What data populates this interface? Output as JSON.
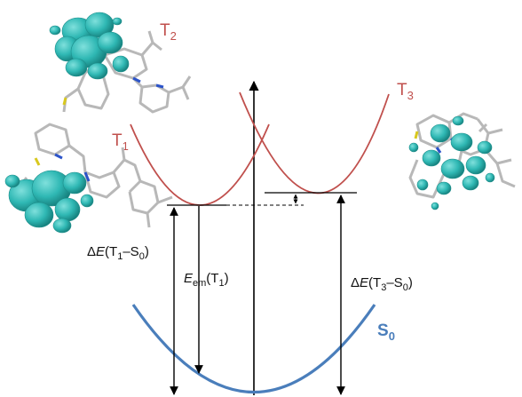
{
  "colors": {
    "excited_curve": "#c0504d",
    "ground_curve": "#4a7ebb",
    "orbital": "#2fb8b4",
    "orbital_dark": "#1e8f8c",
    "bond": "#b8b8b8",
    "nitrogen": "#2b53c9",
    "sulfur": "#d8c81e",
    "arrow": "#000000"
  },
  "states": {
    "T2": {
      "base": "T",
      "sub": "2"
    },
    "T3": {
      "base": "T",
      "sub": "3"
    },
    "T1": {
      "base": "T",
      "sub": "1"
    },
    "S0": {
      "base": "S",
      "sub": "0"
    }
  },
  "labels": {
    "dE_T1": {
      "delta": "Δ",
      "E": "E",
      "open": "(T",
      "sub1": "1",
      "dash": "–S",
      "sub2": "0",
      "close": ")"
    },
    "E_em": {
      "E": "E",
      "em": "em",
      "open": "(T",
      "sub1": "1",
      "close": ")"
    },
    "dE_T3": {
      "delta": "Δ",
      "E": "E",
      "open": "(T",
      "sub1": "3",
      "dash": "–S",
      "sub2": "0",
      "close": ")"
    }
  },
  "molecules": [
    {
      "name": "T2-orbital-molecule",
      "icon": "molecule-orbital-t2"
    },
    {
      "name": "T1-orbital-molecule",
      "icon": "molecule-orbital-t1"
    },
    {
      "name": "T3-orbital-molecule",
      "icon": "molecule-orbital-t3"
    }
  ]
}
